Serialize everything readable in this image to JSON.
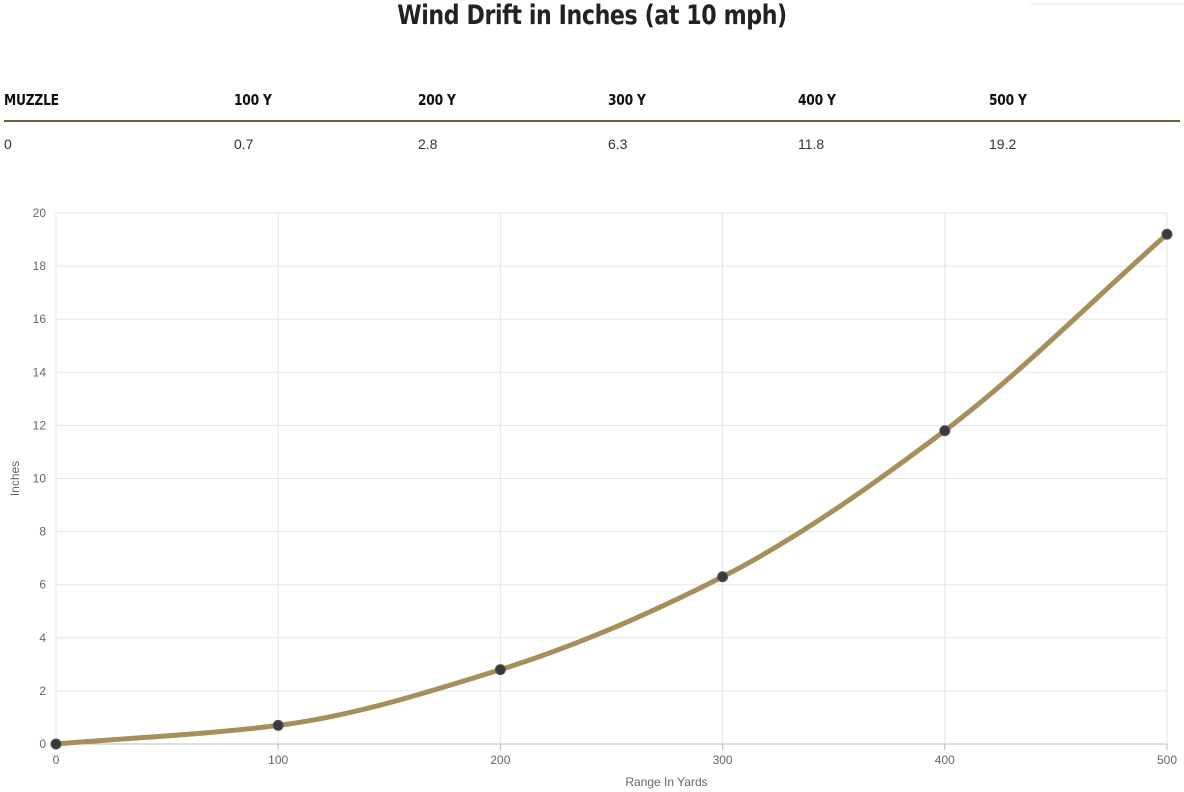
{
  "title": "Wind Drift in Inches (at 10 mph)",
  "table": {
    "headers": [
      "MUZZLE",
      "100 Y",
      "200 Y",
      "300 Y",
      "400 Y",
      "500 Y"
    ],
    "values": [
      "0",
      "0.7",
      "2.8",
      "6.3",
      "11.8",
      "19.2"
    ]
  },
  "colors": {
    "line": "#a68f5a",
    "point": "#3a3a3a",
    "grid": "#e5e5e5",
    "axis": "#bbbbbb",
    "table_rule": "#6e5d3e"
  },
  "chart_data": {
    "type": "line",
    "x": [
      0,
      100,
      200,
      300,
      400,
      500
    ],
    "series": [
      {
        "values": [
          0,
          0.7,
          2.8,
          6.3,
          11.8,
          19.2
        ]
      }
    ],
    "xlabel": "Range In Yards",
    "ylabel": "Inches",
    "xlim": [
      0,
      500
    ],
    "ylim": [
      0,
      20
    ],
    "xticks": [
      "0",
      "100",
      "200",
      "300",
      "400",
      "500"
    ],
    "yticks": [
      "0",
      "2",
      "4",
      "6",
      "8",
      "10",
      "12",
      "14",
      "16",
      "18",
      "20"
    ],
    "grid": true,
    "legend": "none",
    "smooth": true
  }
}
